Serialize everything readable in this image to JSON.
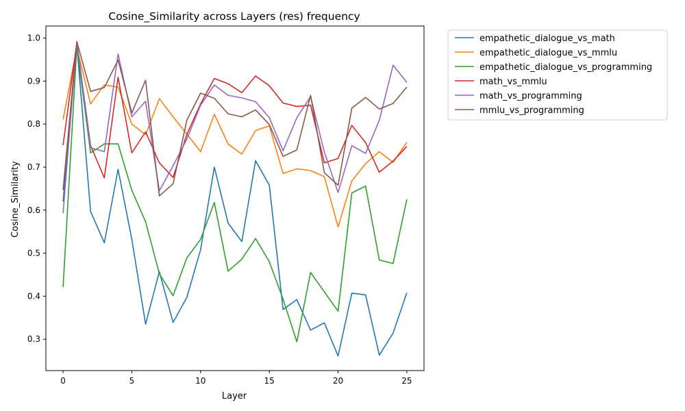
{
  "chart_data": {
    "type": "line",
    "title": "Cosine_Similarity across Layers (res) frequency",
    "xlabel": "Layer",
    "ylabel": "Cosine_Similarity",
    "xlim": [
      -1.25,
      26.25
    ],
    "ylim": [
      0.227,
      1.028
    ],
    "x_ticks": [
      0,
      5,
      10,
      15,
      20,
      25
    ],
    "y_ticks": [
      0.3,
      0.4,
      0.5,
      0.6,
      0.7,
      0.8,
      0.9,
      1.0
    ],
    "grid": false,
    "legend_position": "outside-top-right",
    "x": [
      0,
      1,
      2,
      3,
      4,
      5,
      6,
      7,
      8,
      9,
      10,
      11,
      12,
      13,
      14,
      15,
      16,
      17,
      18,
      19,
      20,
      21,
      22,
      23,
      24,
      25
    ],
    "series": [
      {
        "name": "empathetic_dialogue_vs_math",
        "color": "#1f77b4",
        "values": [
          0.62,
          0.985,
          0.597,
          0.524,
          0.695,
          0.532,
          0.335,
          0.457,
          0.339,
          0.397,
          0.508,
          0.7,
          0.57,
          0.527,
          0.715,
          0.658,
          0.369,
          0.392,
          0.321,
          0.338,
          0.261,
          0.407,
          0.403,
          0.263,
          0.314,
          0.408
        ]
      },
      {
        "name": "empathetic_dialogue_vs_mmlu",
        "color": "#ff7f0e",
        "values": [
          0.811,
          0.978,
          0.847,
          0.891,
          0.886,
          0.8,
          0.775,
          0.859,
          0.817,
          0.777,
          0.736,
          0.823,
          0.754,
          0.73,
          0.785,
          0.796,
          0.685,
          0.696,
          0.692,
          0.678,
          0.561,
          0.668,
          0.708,
          0.736,
          0.711,
          0.758
        ]
      },
      {
        "name": "empathetic_dialogue_vs_programming",
        "color": "#2ca02c",
        "values": [
          0.421,
          0.98,
          0.733,
          0.754,
          0.754,
          0.646,
          0.573,
          0.452,
          0.401,
          0.489,
          0.532,
          0.618,
          0.458,
          0.486,
          0.534,
          0.48,
          0.393,
          0.294,
          0.455,
          0.41,
          0.365,
          0.64,
          0.656,
          0.484,
          0.476,
          0.625
        ]
      },
      {
        "name": "math_vs_mmlu",
        "color": "#d62728",
        "values": [
          0.751,
          0.99,
          0.75,
          0.675,
          0.909,
          0.733,
          0.782,
          0.71,
          0.676,
          0.776,
          0.847,
          0.906,
          0.894,
          0.873,
          0.912,
          0.889,
          0.849,
          0.841,
          0.844,
          0.71,
          0.72,
          0.797,
          0.757,
          0.688,
          0.714,
          0.748
        ]
      },
      {
        "name": "math_vs_programming",
        "color": "#9467bd",
        "values": [
          0.593,
          0.992,
          0.745,
          0.736,
          0.963,
          0.817,
          0.853,
          0.645,
          0.703,
          0.765,
          0.844,
          0.891,
          0.867,
          0.861,
          0.852,
          0.815,
          0.738,
          0.815,
          0.864,
          0.735,
          0.641,
          0.75,
          0.732,
          0.809,
          0.937,
          0.897
        ]
      },
      {
        "name": "mmlu_vs_programming",
        "color": "#8c564b",
        "values": [
          0.647,
          0.992,
          0.876,
          0.885,
          0.949,
          0.826,
          0.902,
          0.633,
          0.661,
          0.809,
          0.872,
          0.86,
          0.824,
          0.817,
          0.833,
          0.799,
          0.725,
          0.74,
          0.867,
          0.687,
          0.658,
          0.837,
          0.862,
          0.835,
          0.848,
          0.886
        ]
      }
    ]
  }
}
